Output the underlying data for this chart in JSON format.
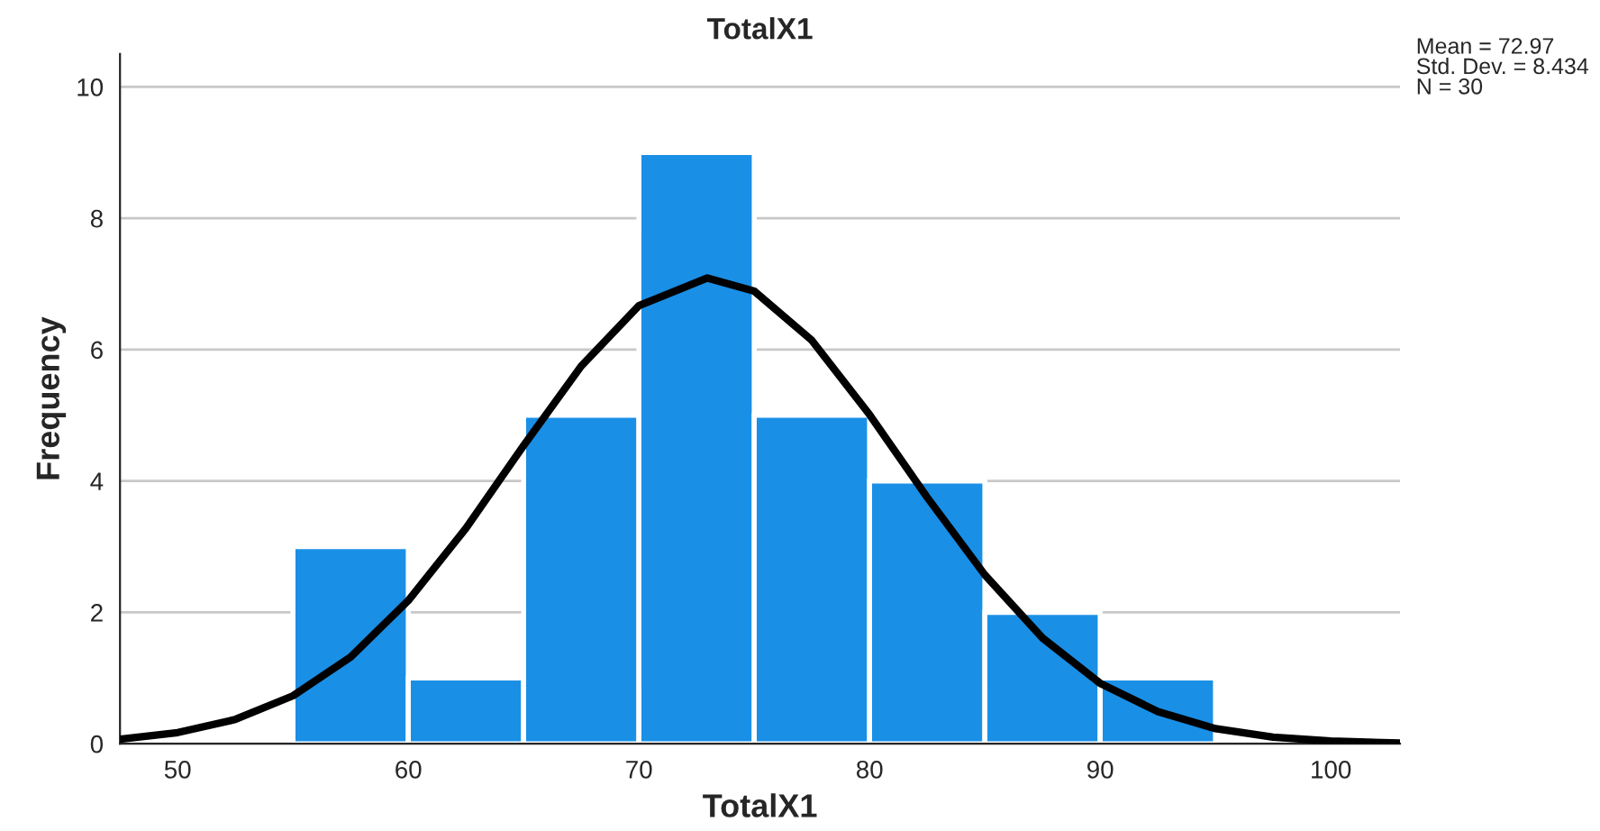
{
  "chart_data": {
    "type": "histogram",
    "title": "TotalX1",
    "xlabel": "TotalX1",
    "ylabel": "Frequency",
    "bins": [
      55,
      60,
      65,
      70,
      75,
      80,
      85,
      90,
      95
    ],
    "values": [
      3,
      1,
      5,
      9,
      5,
      4,
      2,
      1
    ],
    "color": "#1a8fe6",
    "series": [
      {
        "type": "line",
        "color": "#000000",
        "x": [
          47.5,
          50,
          52.5,
          55,
          57.5,
          60,
          62.5,
          65,
          67.5,
          70,
          72.97,
          75,
          77.5,
          80,
          82.5,
          85,
          87.5,
          90,
          92.5,
          95,
          97.5,
          100,
          103
        ],
        "values": [
          0.07,
          0.17,
          0.37,
          0.73,
          1.32,
          2.18,
          3.28,
          4.54,
          5.75,
          6.67,
          7.09,
          6.89,
          6.14,
          5.01,
          3.75,
          2.57,
          1.61,
          0.92,
          0.49,
          0.23,
          0.1,
          0.04,
          0.01
        ]
      }
    ],
    "xlim": [
      47.5,
      103
    ],
    "xticks": [
      50,
      60,
      70,
      80,
      90,
      100
    ],
    "ylim": [
      0,
      10.5
    ],
    "yticks": [
      0,
      2,
      4,
      6,
      8,
      10
    ],
    "grid": "y",
    "legend": false,
    "line_style": "solid",
    "marker": "none",
    "annotations": [
      "Mean = 72.97\nStd. Dev. = 8.434\nN = 30"
    ]
  }
}
